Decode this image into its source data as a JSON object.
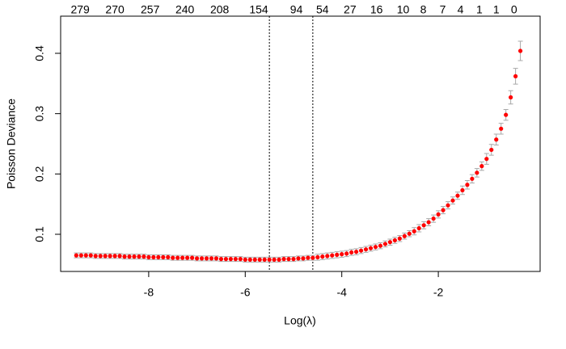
{
  "chart_data": {
    "type": "scatter",
    "x_label": "Log(λ)",
    "y_label": "Poisson Deviance",
    "xlim": [
      -9.824,
      0.109
    ],
    "ylim": [
      0.0384,
      0.4616
    ],
    "xticks": [
      -8,
      -6,
      -4,
      -2
    ],
    "yticks": [
      0.1,
      0.2,
      0.3,
      0.4
    ],
    "top_ticks": [
      {
        "value": -9.42,
        "label": "279"
      },
      {
        "value": -8.7,
        "label": "270"
      },
      {
        "value": -7.97,
        "label": "257"
      },
      {
        "value": -7.25,
        "label": "240"
      },
      {
        "value": -6.53,
        "label": "208"
      },
      {
        "value": -5.72,
        "label": "154"
      },
      {
        "value": -4.94,
        "label": "94"
      },
      {
        "value": -4.4,
        "label": "54"
      },
      {
        "value": -3.83,
        "label": "27"
      },
      {
        "value": -3.28,
        "label": "16"
      },
      {
        "value": -2.73,
        "label": "10"
      },
      {
        "value": -2.31,
        "label": "8"
      },
      {
        "value": -1.91,
        "label": "7"
      },
      {
        "value": -1.54,
        "label": "4"
      },
      {
        "value": -1.15,
        "label": "1"
      },
      {
        "value": -0.8,
        "label": "1"
      },
      {
        "value": -0.43,
        "label": "0"
      }
    ],
    "vlines": [
      -5.5,
      -4.6
    ],
    "color": "#ff0000",
    "error_color": "#a8a8a8",
    "x": [
      -9.5,
      -9.4,
      -9.3,
      -9.2,
      -9.1,
      -9.0,
      -8.9,
      -8.8,
      -8.7,
      -8.6,
      -8.5,
      -8.4,
      -8.3,
      -8.2,
      -8.1,
      -8.0,
      -7.9,
      -7.8,
      -7.7,
      -7.6,
      -7.5,
      -7.4,
      -7.3,
      -7.2,
      -7.1,
      -7.0,
      -6.9,
      -6.8,
      -6.7,
      -6.6,
      -6.5,
      -6.4,
      -6.3,
      -6.2,
      -6.1,
      -6.0,
      -5.9,
      -5.8,
      -5.7,
      -5.6,
      -5.5,
      -5.4,
      -5.3,
      -5.2,
      -5.1,
      -5.0,
      -4.9,
      -4.8,
      -4.7,
      -4.6,
      -4.5,
      -4.4,
      -4.3,
      -4.2,
      -4.1,
      -4.0,
      -3.9,
      -3.8,
      -3.7,
      -3.6,
      -3.5,
      -3.4,
      -3.3,
      -3.2,
      -3.1,
      -3.0,
      -2.9,
      -2.8,
      -2.7,
      -2.6,
      -2.5,
      -2.4,
      -2.3,
      -2.2,
      -2.1,
      -2.0,
      -1.9,
      -1.8,
      -1.7,
      -1.6,
      -1.5,
      -1.4,
      -1.3,
      -1.2,
      -1.1,
      -1.0,
      -0.9,
      -0.8,
      -0.7,
      -0.6,
      -0.5,
      -0.4,
      -0.3
    ],
    "values": [
      0.065,
      0.065,
      0.065,
      0.065,
      0.064,
      0.064,
      0.064,
      0.064,
      0.064,
      0.064,
      0.063,
      0.063,
      0.063,
      0.063,
      0.063,
      0.062,
      0.062,
      0.062,
      0.062,
      0.062,
      0.061,
      0.061,
      0.061,
      0.061,
      0.061,
      0.06,
      0.06,
      0.06,
      0.06,
      0.06,
      0.059,
      0.059,
      0.059,
      0.059,
      0.059,
      0.058,
      0.058,
      0.058,
      0.058,
      0.058,
      0.058,
      0.058,
      0.058,
      0.059,
      0.059,
      0.059,
      0.06,
      0.06,
      0.061,
      0.061,
      0.062,
      0.063,
      0.064,
      0.065,
      0.066,
      0.067,
      0.068,
      0.07,
      0.071,
      0.073,
      0.075,
      0.077,
      0.079,
      0.081,
      0.084,
      0.087,
      0.09,
      0.093,
      0.097,
      0.101,
      0.105,
      0.11,
      0.115,
      0.12,
      0.126,
      0.133,
      0.14,
      0.148,
      0.156,
      0.164,
      0.173,
      0.182,
      0.192,
      0.202,
      0.213,
      0.225,
      0.24,
      0.257,
      0.275,
      0.298,
      0.327,
      0.362,
      0.404
    ],
    "error": [
      0.004,
      0.004,
      0.004,
      0.004,
      0.004,
      0.004,
      0.004,
      0.004,
      0.004,
      0.004,
      0.004,
      0.004,
      0.004,
      0.004,
      0.004,
      0.004,
      0.004,
      0.004,
      0.004,
      0.004,
      0.004,
      0.004,
      0.004,
      0.004,
      0.004,
      0.004,
      0.004,
      0.004,
      0.004,
      0.004,
      0.004,
      0.004,
      0.004,
      0.004,
      0.004,
      0.004,
      0.004,
      0.004,
      0.004,
      0.004,
      0.004,
      0.004,
      0.004,
      0.004,
      0.004,
      0.004,
      0.004,
      0.004,
      0.004,
      0.004,
      0.005,
      0.005,
      0.005,
      0.005,
      0.005,
      0.005,
      0.005,
      0.005,
      0.005,
      0.005,
      0.005,
      0.005,
      0.005,
      0.005,
      0.005,
      0.005,
      0.005,
      0.005,
      0.005,
      0.005,
      0.006,
      0.006,
      0.006,
      0.006,
      0.006,
      0.006,
      0.006,
      0.006,
      0.006,
      0.006,
      0.007,
      0.007,
      0.007,
      0.007,
      0.007,
      0.009,
      0.009,
      0.009,
      0.009,
      0.009,
      0.011,
      0.013,
      0.016
    ]
  }
}
